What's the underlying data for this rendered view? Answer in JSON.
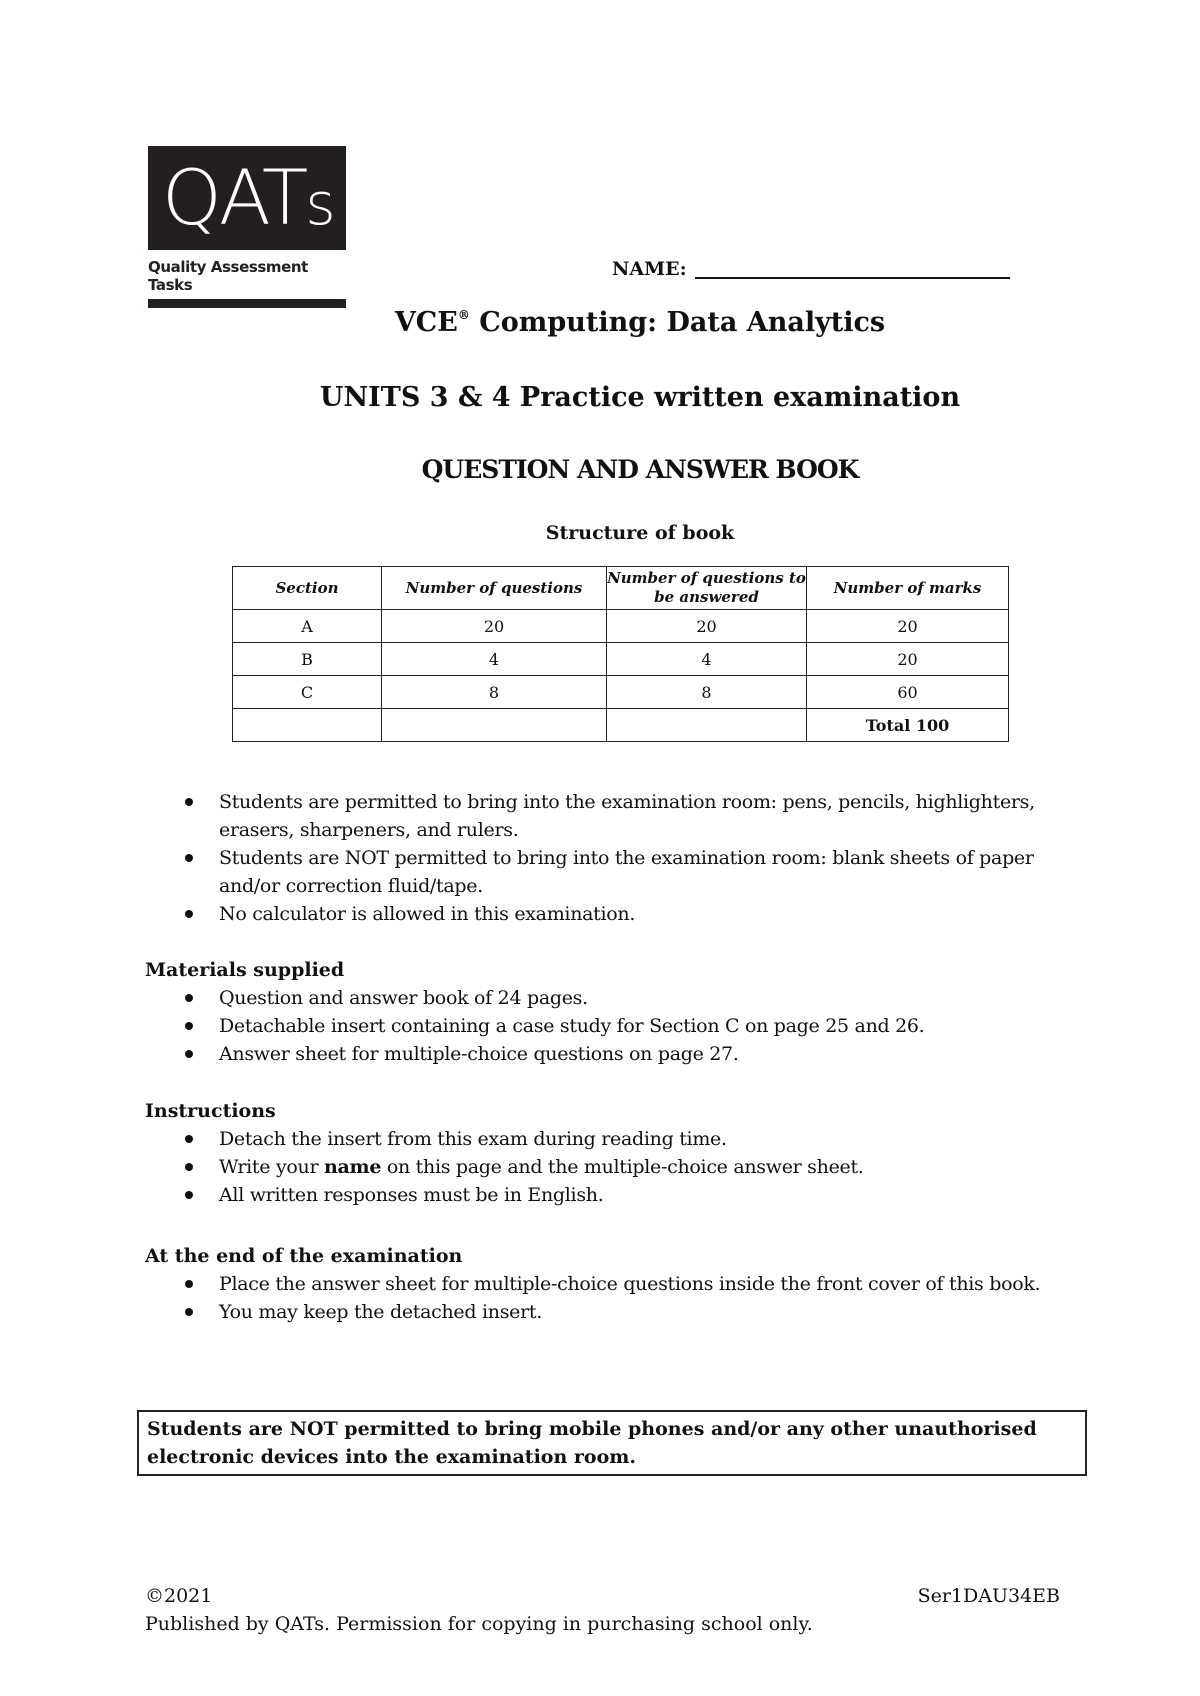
{
  "logo": {
    "wordmark_main": "QAT",
    "wordmark_s": "s",
    "tagline": "Quality Assessment Tasks"
  },
  "name_label": "NAME:",
  "title": {
    "main_pre": "VCE",
    "reg": "®",
    "main_post": " Computing: Data Analytics",
    "units": "UNITS 3 & 4 Practice written examination",
    "book": "QUESTION AND ANSWER BOOK",
    "structure": "Structure of book"
  },
  "table": {
    "headers": [
      "Section",
      "Number of questions",
      "Number of questions to be answered",
      "Number of marks"
    ],
    "rows": [
      [
        "A",
        "20",
        "20",
        "20"
      ],
      [
        "B",
        "4",
        "4",
        "20"
      ],
      [
        "C",
        "8",
        "8",
        "60"
      ]
    ],
    "total": "Total 100"
  },
  "rules": [
    "Students are permitted to bring into the examination room: pens, pencils, highlighters, erasers, sharpeners, and rulers.",
    "Students are NOT permitted to bring into the examination room: blank sheets of paper and/or correction fluid/tape.",
    "No calculator is allowed in this examination."
  ],
  "materials": {
    "heading": "Materials supplied",
    "items": [
      "Question and answer book of 24 pages.",
      "Detachable insert containing a case study for Section C on page 25 and 26.",
      "Answer sheet for multiple-choice questions on page 27."
    ]
  },
  "instructions": {
    "heading": "Instructions",
    "items": [
      "Detach the insert from this exam during reading time.",
      "Write your ",
      "name",
      " on this page and the multiple-choice answer sheet.",
      "All written responses must be in English."
    ]
  },
  "end": {
    "heading": "At the end of the examination",
    "items": [
      "Place the answer sheet for multiple-choice questions inside the front cover of this book.",
      "You may keep the detached insert."
    ]
  },
  "notice": "Students are NOT permitted to bring mobile phones and/or any other unauthorised electronic devices into the examination room.",
  "footer": {
    "copyright": "©2021",
    "code": "Ser1DAU34EB",
    "publisher": "Published by QATs. Permission for copying in purchasing school only."
  }
}
